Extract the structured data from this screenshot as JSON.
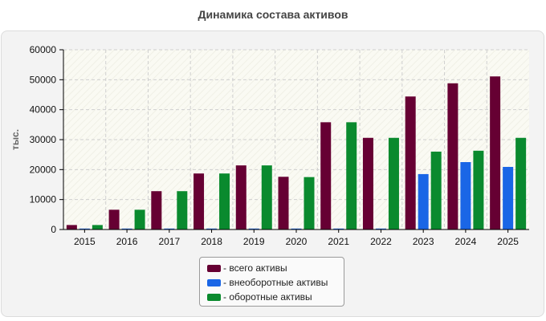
{
  "chart_data": {
    "type": "bar",
    "title": "Динамика состава активов",
    "ylabel": "тыс.",
    "xlabel": "",
    "ylim": [
      0,
      60000
    ],
    "yticks": [
      0,
      10000,
      20000,
      30000,
      40000,
      50000,
      60000
    ],
    "grid": true,
    "legend_position": "bottom-center",
    "categories": [
      "2015",
      "2016",
      "2017",
      "2018",
      "2019",
      "2020",
      "2021",
      "2022",
      "2023",
      "2024",
      "2025"
    ],
    "series": [
      {
        "name": "- всего активы",
        "color": "#660033",
        "values": [
          1500,
          6600,
          12800,
          18700,
          21400,
          17600,
          35800,
          30600,
          44400,
          48800,
          51100
        ]
      },
      {
        "name": "- внеоборотные активы",
        "color": "#1a66e6",
        "values": [
          100,
          100,
          100,
          100,
          100,
          100,
          150,
          150,
          18500,
          22500,
          20900
        ]
      },
      {
        "name": "- оборотные активы",
        "color": "#0a8a2e",
        "values": [
          1500,
          6600,
          12800,
          18700,
          21400,
          17500,
          35800,
          30600,
          26000,
          26300,
          30600
        ]
      }
    ]
  }
}
